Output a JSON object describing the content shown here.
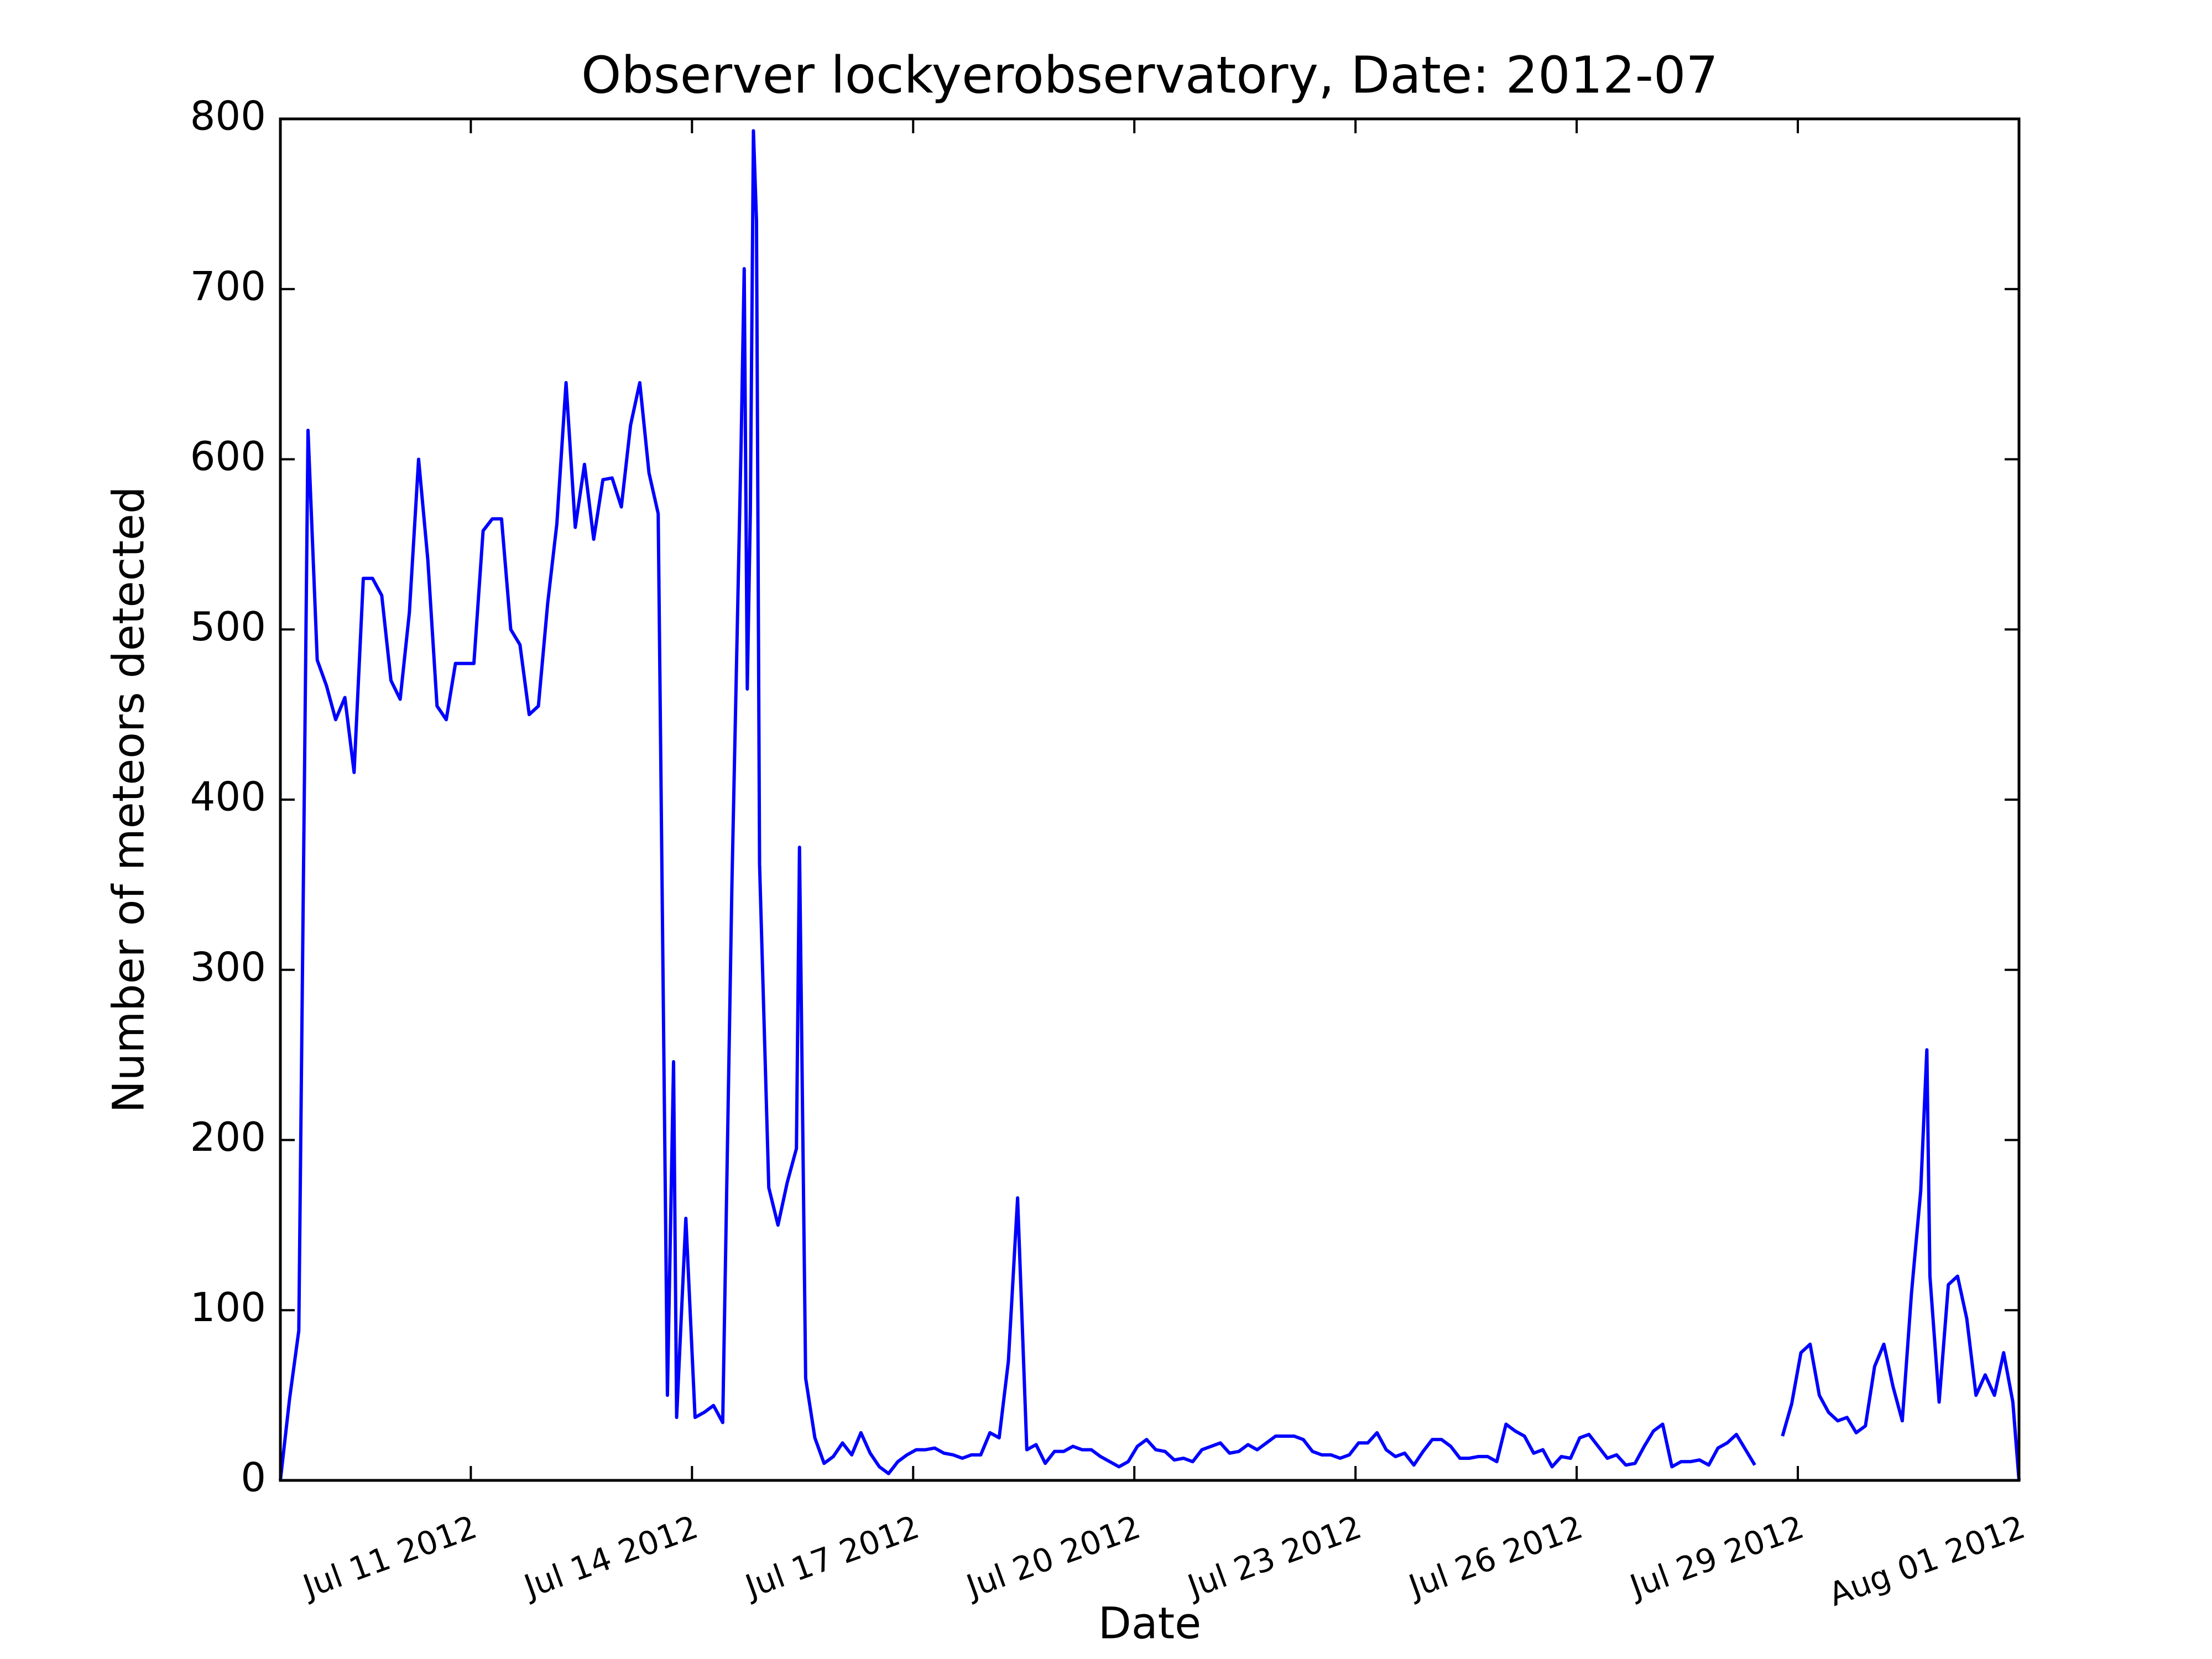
{
  "chart_data": {
    "type": "line",
    "title": "Observer lockyerobservatory, Date: 2012-07",
    "x_label": "Date",
    "y_label": "Number of meteors detected",
    "xlim": [
      "2012-07-08 10:00",
      "2012-08-01 00:00"
    ],
    "ylim": [
      0,
      800
    ],
    "yticks": [
      0,
      100,
      200,
      300,
      400,
      500,
      600,
      700,
      800
    ],
    "xticks": [
      {
        "value": "2012-07-11 00:00",
        "label": "Jul 11 2012"
      },
      {
        "value": "2012-07-14 00:00",
        "label": "Jul 14 2012"
      },
      {
        "value": "2012-07-17 00:00",
        "label": "Jul 17 2012"
      },
      {
        "value": "2012-07-20 00:00",
        "label": "Jul 20 2012"
      },
      {
        "value": "2012-07-23 00:00",
        "label": "Jul 23 2012"
      },
      {
        "value": "2012-07-26 00:00",
        "label": "Jul 26 2012"
      },
      {
        "value": "2012-07-29 00:00",
        "label": "Jul 29 2012"
      },
      {
        "value": "2012-08-01 00:00",
        "label": "Aug 01 2012"
      }
    ],
    "grid": false,
    "x": [
      "2012-07-08 10:00",
      "2012-07-08 13:00",
      "2012-07-08 16:00",
      "2012-07-08 19:00",
      "2012-07-08 22:00",
      "2012-07-09 01:00",
      "2012-07-09 04:00",
      "2012-07-09 07:00",
      "2012-07-09 10:00",
      "2012-07-09 13:00",
      "2012-07-09 16:00",
      "2012-07-09 19:00",
      "2012-07-09 22:00",
      "2012-07-10 01:00",
      "2012-07-10 04:00",
      "2012-07-10 07:00",
      "2012-07-10 10:00",
      "2012-07-10 13:00",
      "2012-07-10 16:00",
      "2012-07-10 19:00",
      "2012-07-10 22:00",
      "2012-07-11 01:00",
      "2012-07-11 04:00",
      "2012-07-11 07:00",
      "2012-07-11 10:00",
      "2012-07-11 13:00",
      "2012-07-11 16:00",
      "2012-07-11 19:00",
      "2012-07-11 22:00",
      "2012-07-12 01:00",
      "2012-07-12 04:00",
      "2012-07-12 07:00",
      "2012-07-12 10:00",
      "2012-07-12 13:00",
      "2012-07-12 16:00",
      "2012-07-12 19:00",
      "2012-07-12 22:00",
      "2012-07-13 01:00",
      "2012-07-13 04:00",
      "2012-07-13 07:00",
      "2012-07-13 10:00",
      "2012-07-13 13:00",
      "2012-07-13 16:00",
      "2012-07-13 18:00",
      "2012-07-13 19:00",
      "2012-07-13 22:00",
      "2012-07-14 01:00",
      "2012-07-14 04:00",
      "2012-07-14 07:00",
      "2012-07-14 10:00",
      "2012-07-14 13:00",
      "2012-07-14 16:00",
      "2012-07-14 17:00",
      "2012-07-14 18:00",
      "2012-07-14 19:00",
      "2012-07-14 20:00",
      "2012-07-14 21:00",
      "2012-07-14 22:00",
      "2012-07-15 01:00",
      "2012-07-15 04:00",
      "2012-07-15 07:00",
      "2012-07-15 10:00",
      "2012-07-15 11:00",
      "2012-07-15 13:00",
      "2012-07-15 16:00",
      "2012-07-15 19:00",
      "2012-07-15 22:00",
      "2012-07-16 01:00",
      "2012-07-16 04:00",
      "2012-07-16 07:00",
      "2012-07-16 10:00",
      "2012-07-16 13:00",
      "2012-07-16 16:00",
      "2012-07-16 19:00",
      "2012-07-16 22:00",
      "2012-07-17 01:00",
      "2012-07-17 04:00",
      "2012-07-17 07:00",
      "2012-07-17 10:00",
      "2012-07-17 13:00",
      "2012-07-17 16:00",
      "2012-07-17 19:00",
      "2012-07-17 22:00",
      "2012-07-18 01:00",
      "2012-07-18 04:00",
      "2012-07-18 07:00",
      "2012-07-18 10:00",
      "2012-07-18 13:00",
      "2012-07-18 16:00",
      "2012-07-18 19:00",
      "2012-07-18 22:00",
      "2012-07-19 01:00",
      "2012-07-19 04:00",
      "2012-07-19 07:00",
      "2012-07-19 10:00",
      "2012-07-19 13:00",
      "2012-07-19 16:00",
      "2012-07-19 19:00",
      "2012-07-19 22:00",
      "2012-07-20 01:00",
      "2012-07-20 04:00",
      "2012-07-20 07:00",
      "2012-07-20 10:00",
      "2012-07-20 13:00",
      "2012-07-20 16:00",
      "2012-07-20 19:00",
      "2012-07-20 22:00",
      "2012-07-21 01:00",
      "2012-07-21 04:00",
      "2012-07-21 07:00",
      "2012-07-21 10:00",
      "2012-07-21 13:00",
      "2012-07-21 16:00",
      "2012-07-21 19:00",
      "2012-07-21 22:00",
      "2012-07-22 01:00",
      "2012-07-22 04:00",
      "2012-07-22 07:00",
      "2012-07-22 10:00",
      "2012-07-22 13:00",
      "2012-07-22 16:00",
      "2012-07-22 19:00",
      "2012-07-22 22:00",
      "2012-07-23 01:00",
      "2012-07-23 04:00",
      "2012-07-23 07:00",
      "2012-07-23 10:00",
      "2012-07-23 13:00",
      "2012-07-23 16:00",
      "2012-07-23 19:00",
      "2012-07-23 22:00",
      "2012-07-24 01:00",
      "2012-07-24 04:00",
      "2012-07-24 07:00",
      "2012-07-24 10:00",
      "2012-07-24 13:00",
      "2012-07-24 16:00",
      "2012-07-24 19:00",
      "2012-07-24 22:00",
      "2012-07-25 01:00",
      "2012-07-25 04:00",
      "2012-07-25 07:00",
      "2012-07-25 10:00",
      "2012-07-25 13:00",
      "2012-07-25 16:00",
      "2012-07-25 19:00",
      "2012-07-25 22:00",
      "2012-07-26 01:00",
      "2012-07-26 04:00",
      "2012-07-26 07:00",
      "2012-07-26 10:00",
      "2012-07-26 13:00",
      "2012-07-26 16:00",
      "2012-07-26 19:00",
      "2012-07-26 22:00",
      "2012-07-27 01:00",
      "2012-07-27 04:00",
      "2012-07-27 07:00",
      "2012-07-27 10:00",
      "2012-07-27 13:00",
      "2012-07-27 16:00",
      "2012-07-27 19:00",
      "2012-07-27 22:00",
      "2012-07-28 01:00",
      "2012-07-28 04:00",
      "2012-07-28 07:00",
      "2012-07-28 10:00",
      "2012-07-28 13:00",
      "2012-07-28 16:00",
      "2012-07-28 19:00",
      "2012-07-28 22:00",
      "2012-07-29 01:00",
      "2012-07-29 04:00",
      "2012-07-29 07:00",
      "2012-07-29 10:00",
      "2012-07-29 13:00",
      "2012-07-29 16:00",
      "2012-07-29 19:00",
      "2012-07-29 22:00",
      "2012-07-30 01:00",
      "2012-07-30 04:00",
      "2012-07-30 07:00",
      "2012-07-30 10:00",
      "2012-07-30 13:00",
      "2012-07-30 16:00",
      "2012-07-30 18:00",
      "2012-07-30 19:00",
      "2012-07-30 22:00",
      "2012-07-31 01:00",
      "2012-07-31 04:00",
      "2012-07-31 07:00",
      "2012-07-31 10:00",
      "2012-07-31 13:00",
      "2012-07-31 16:00",
      "2012-07-31 19:00",
      "2012-07-31 22:00",
      "2012-08-01 00:00"
    ],
    "series": [
      {
        "color": "#0000ff",
        "values": [
          0,
          48,
          88,
          617,
          482,
          467,
          447,
          460,
          416,
          530,
          530,
          520,
          470,
          459,
          510,
          600,
          541,
          455,
          447,
          480,
          480,
          480,
          558,
          565,
          565,
          500,
          491,
          450,
          455,
          515,
          562,
          645,
          560,
          597,
          553,
          588,
          589,
          572,
          620,
          645,
          592,
          568,
          50,
          246,
          37,
          154,
          37,
          40,
          44,
          34,
          350,
          610,
          712,
          465,
          570,
          793,
          740,
          362,
          172,
          150,
          175,
          195,
          372,
          60,
          25,
          10,
          14,
          22,
          15,
          28,
          16,
          8,
          4,
          11,
          15,
          18,
          18,
          19,
          16,
          15,
          13,
          15,
          15,
          28,
          25,
          70,
          166,
          18,
          21,
          10,
          17,
          17,
          20,
          18,
          18,
          14,
          11,
          8,
          11,
          20,
          24,
          18,
          17,
          12,
          13,
          11,
          18,
          20,
          22,
          16,
          17,
          21,
          18,
          22,
          26,
          26,
          26,
          24,
          17,
          15,
          15,
          13,
          15,
          22,
          22,
          28,
          18,
          14,
          16,
          9,
          17,
          24,
          24,
          20,
          13,
          13,
          14,
          14,
          11,
          33,
          29,
          26,
          16,
          18,
          8,
          14,
          13,
          25,
          27,
          20,
          13,
          15,
          9,
          10,
          20,
          29,
          33,
          8,
          11,
          11,
          12,
          9,
          19,
          22,
          27,
          18,
          9,
          null,
          null,
          26,
          45,
          75,
          80,
          50,
          40,
          35,
          37,
          28,
          32,
          67,
          80,
          55,
          35,
          110,
          170,
          253,
          120,
          46,
          115,
          120,
          95,
          50,
          62,
          50,
          75,
          46,
          0
        ]
      }
    ]
  }
}
